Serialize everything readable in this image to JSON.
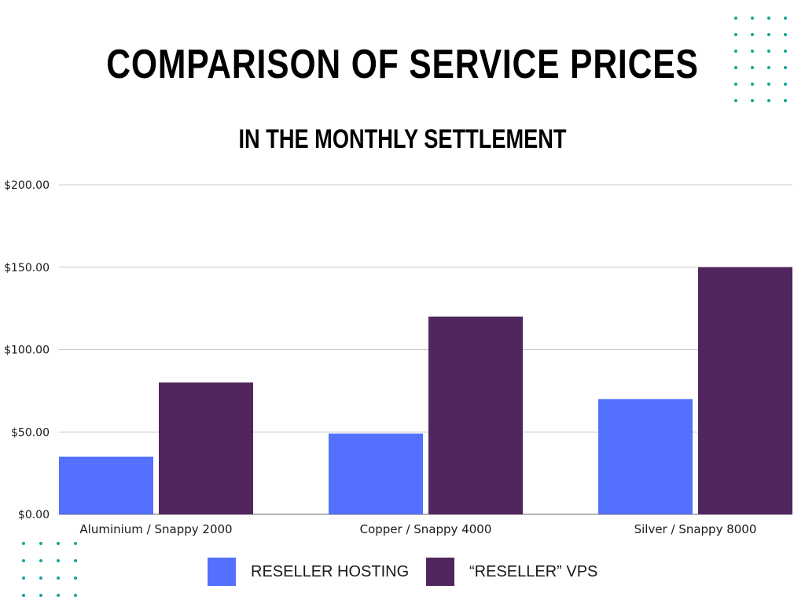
{
  "colors": {
    "series_1": "#5470ff",
    "series_2": "#51265f",
    "dots": "#1aa39a",
    "gridline": "#c9c9c9"
  },
  "chart_data": {
    "type": "bar",
    "title": "COMPARISON OF SERVICE PRICES",
    "subtitle": "IN THE MONTHLY SETTLEMENT",
    "xlabel": "",
    "ylabel": "",
    "ylim": [
      0,
      200
    ],
    "yticks": [
      0,
      50,
      100,
      150,
      200
    ],
    "ytick_labels": [
      "$0.00",
      "$50.00",
      "$100.00",
      "$150.00",
      "$200.00"
    ],
    "grid": true,
    "legend_position": "bottom",
    "categories": [
      "Aluminium / Snappy 2000",
      "Copper / Snappy 4000",
      "Silver / Snappy 8000"
    ],
    "series": [
      {
        "name": "RESELLER HOSTING",
        "values": [
          35,
          49,
          70
        ]
      },
      {
        "name": "“RESELLER” VPS",
        "values": [
          80,
          120,
          150
        ]
      }
    ]
  }
}
